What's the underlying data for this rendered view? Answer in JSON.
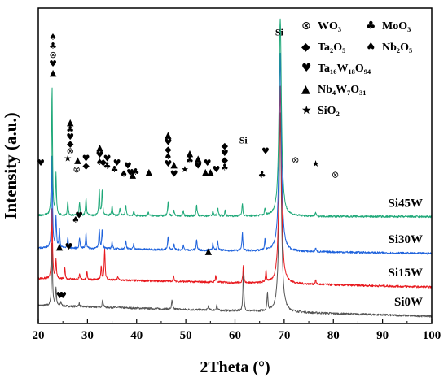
{
  "chart_data": {
    "type": "line",
    "title": "",
    "xlabel": "2Theta (°)",
    "ylabel": "Intensity (a.u.)",
    "xlim": [
      20,
      100
    ],
    "x_ticks": [
      "20",
      "30",
      "40",
      "50",
      "60",
      "70",
      "80",
      "90",
      "100"
    ],
    "y_ticks": [],
    "grid": false,
    "legend_position": "top-right",
    "legend": [
      {
        "symbol": "⊗",
        "label": "WO₃"
      },
      {
        "symbol": "♣",
        "label": "MoO₃"
      },
      {
        "symbol": "◆",
        "label": "Ta₂O₅"
      },
      {
        "symbol": "♠",
        "label": "Nb₂O₅"
      },
      {
        "symbol": "♥",
        "label": "Ta₁₆W₁₈O₉₄"
      },
      {
        "symbol": "▲",
        "label": "Nb₄W₇O₃₁"
      },
      {
        "symbol": "★",
        "label": "SiO₂",
        "color": "#e8191e"
      }
    ],
    "series": [
      {
        "name": "Si0W",
        "color": "#555555",
        "offset": 0.0,
        "baseline_slope": -0.0015,
        "peaks": [
          [
            22.8,
            0.72
          ],
          [
            23.6,
            0.2
          ],
          [
            24.6,
            0.05
          ],
          [
            28.3,
            0.04
          ],
          [
            33.1,
            0.09
          ],
          [
            47.2,
            0.1
          ],
          [
            54.6,
            0.05
          ],
          [
            56.3,
            0.06
          ],
          [
            61.7,
            0.43
          ],
          [
            66.6,
            0.2
          ],
          [
            69.2,
            2.2
          ]
        ]
      },
      {
        "name": "Si15W",
        "color": "#e8191e",
        "offset": 0.3,
        "baseline_slope": -0.0012,
        "peaks": [
          [
            22.8,
            0.8
          ],
          [
            23.6,
            0.2
          ],
          [
            25.4,
            0.12
          ],
          [
            28.4,
            0.05
          ],
          [
            29.9,
            0.08
          ],
          [
            32.8,
            0.14
          ],
          [
            33.5,
            0.35
          ],
          [
            36.2,
            0.04
          ],
          [
            47.5,
            0.06
          ],
          [
            56.1,
            0.08
          ],
          [
            61.7,
            0.2
          ],
          [
            66.3,
            0.14
          ],
          [
            69.2,
            2.2
          ],
          [
            76.4,
            0.05
          ]
        ]
      },
      {
        "name": "Si30W",
        "color": "#1e62dc",
        "offset": 0.64,
        "baseline_slope": -0.0008,
        "peaks": [
          [
            22.8,
            1.05
          ],
          [
            23.6,
            0.35
          ],
          [
            24.3,
            0.2
          ],
          [
            26.0,
            0.12
          ],
          [
            28.4,
            0.12
          ],
          [
            29.7,
            0.17
          ],
          [
            32.4,
            0.22
          ],
          [
            33.0,
            0.22
          ],
          [
            35.0,
            0.08
          ],
          [
            37.8,
            0.1
          ],
          [
            39.4,
            0.06
          ],
          [
            46.4,
            0.15
          ],
          [
            47.6,
            0.06
          ],
          [
            49.5,
            0.05
          ],
          [
            52.2,
            0.12
          ],
          [
            55.5,
            0.08
          ],
          [
            56.5,
            0.1
          ],
          [
            61.5,
            0.2
          ],
          [
            66.1,
            0.12
          ],
          [
            69.2,
            2.2
          ],
          [
            76.4,
            0.04
          ]
        ]
      },
      {
        "name": "Si45W",
        "color": "#1ea878",
        "offset": 1.0,
        "baseline_slope": -0.0002,
        "peaks": [
          [
            22.8,
            1.45
          ],
          [
            23.6,
            0.45
          ],
          [
            26.0,
            0.16
          ],
          [
            28.4,
            0.15
          ],
          [
            29.7,
            0.19
          ],
          [
            32.4,
            0.29
          ],
          [
            33.0,
            0.29
          ],
          [
            35.0,
            0.12
          ],
          [
            36.6,
            0.08
          ],
          [
            37.8,
            0.12
          ],
          [
            39.4,
            0.05
          ],
          [
            42.4,
            0.04
          ],
          [
            46.4,
            0.15
          ],
          [
            47.6,
            0.06
          ],
          [
            49.5,
            0.05
          ],
          [
            52.2,
            0.12
          ],
          [
            55.5,
            0.06
          ],
          [
            56.5,
            0.09
          ],
          [
            58.0,
            0.06
          ],
          [
            61.5,
            0.14
          ],
          [
            66.1,
            0.08
          ],
          [
            69.2,
            2.2
          ],
          [
            76.4,
            0.04
          ]
        ]
      }
    ],
    "annotations": [
      {
        "text": "Si",
        "x": 69.0,
        "y": 3.0,
        "kind": "label"
      },
      {
        "text": "Si",
        "x": 61.7,
        "y": 1.8,
        "kind": "label"
      },
      {
        "text": "♥",
        "x": 20.5,
        "y": 1.55,
        "kind": "symbol"
      },
      {
        "text": "♠",
        "x": 23.0,
        "y": 2.95,
        "kind": "symbol"
      },
      {
        "text": "♣",
        "x": 23.0,
        "y": 2.85,
        "kind": "symbol"
      },
      {
        "text": "⊗",
        "x": 23.0,
        "y": 2.75,
        "kind": "symbol"
      },
      {
        "text": "♥",
        "x": 23.0,
        "y": 2.65,
        "kind": "symbol"
      },
      {
        "text": "▲",
        "x": 23.0,
        "y": 2.55,
        "kind": "symbol"
      },
      {
        "text": "▲",
        "x": 26.5,
        "y": 2.0,
        "kind": "symbol"
      },
      {
        "text": "♣",
        "x": 26.5,
        "y": 1.92,
        "kind": "symbol"
      },
      {
        "text": "♥",
        "x": 26.5,
        "y": 1.84,
        "kind": "symbol"
      },
      {
        "text": "◆",
        "x": 26.5,
        "y": 1.76,
        "kind": "symbol"
      },
      {
        "text": "⊗",
        "x": 26.5,
        "y": 1.68,
        "kind": "symbol"
      },
      {
        "text": "★",
        "x": 26.0,
        "y": 1.6,
        "kind": "symbol",
        "color": "#e8191e"
      },
      {
        "text": "▲",
        "x": 28.0,
        "y": 1.58,
        "kind": "symbol"
      },
      {
        "text": "⊗",
        "x": 27.8,
        "y": 1.48,
        "kind": "symbol"
      },
      {
        "text": "♥",
        "x": 29.7,
        "y": 1.6,
        "kind": "symbol"
      },
      {
        "text": "◆",
        "x": 29.7,
        "y": 1.52,
        "kind": "symbol"
      },
      {
        "text": "▲",
        "x": 32.5,
        "y": 1.72,
        "kind": "symbol"
      },
      {
        "text": "♥",
        "x": 32.5,
        "y": 1.64,
        "kind": "symbol"
      },
      {
        "text": "♠",
        "x": 32.5,
        "y": 1.56,
        "kind": "symbol"
      },
      {
        "text": "♥",
        "x": 34.0,
        "y": 1.6,
        "kind": "symbol"
      },
      {
        "text": "♣",
        "x": 34.0,
        "y": 1.52,
        "kind": "symbol"
      },
      {
        "text": "◆",
        "x": 33.2,
        "y": 1.56,
        "kind": "symbol"
      },
      {
        "text": "♥",
        "x": 36.0,
        "y": 1.55,
        "kind": "symbol"
      },
      {
        "text": "♣",
        "x": 35.5,
        "y": 1.48,
        "kind": "symbol"
      },
      {
        "text": "♠",
        "x": 37.4,
        "y": 1.43,
        "kind": "symbol"
      },
      {
        "text": "♥",
        "x": 38.2,
        "y": 1.52,
        "kind": "symbol"
      },
      {
        "text": "♥",
        "x": 38.7,
        "y": 1.44,
        "kind": "symbol"
      },
      {
        "text": "▲",
        "x": 39.2,
        "y": 1.42,
        "kind": "symbol"
      },
      {
        "text": "♣",
        "x": 39.8,
        "y": 1.45,
        "kind": "symbol"
      },
      {
        "text": "▲",
        "x": 42.5,
        "y": 1.45,
        "kind": "symbol"
      },
      {
        "text": "▲",
        "x": 46.4,
        "y": 1.86,
        "kind": "symbol"
      },
      {
        "text": "♥",
        "x": 46.4,
        "y": 1.78,
        "kind": "symbol"
      },
      {
        "text": "◆",
        "x": 46.4,
        "y": 1.7,
        "kind": "symbol"
      },
      {
        "text": "♠",
        "x": 46.4,
        "y": 1.62,
        "kind": "symbol"
      },
      {
        "text": "♥",
        "x": 46.4,
        "y": 1.54,
        "kind": "symbol"
      },
      {
        "text": "▲",
        "x": 47.6,
        "y": 1.53,
        "kind": "symbol"
      },
      {
        "text": "♥",
        "x": 47.6,
        "y": 1.43,
        "kind": "symbol"
      },
      {
        "text": "★",
        "x": 49.8,
        "y": 1.48,
        "kind": "symbol",
        "color": "#e8191e"
      },
      {
        "text": "▲",
        "x": 50.8,
        "y": 1.66,
        "kind": "symbol"
      },
      {
        "text": "♣",
        "x": 50.8,
        "y": 1.58,
        "kind": "symbol"
      },
      {
        "text": "▲",
        "x": 52.5,
        "y": 1.6,
        "kind": "symbol"
      },
      {
        "text": "♥",
        "x": 52.5,
        "y": 1.52,
        "kind": "symbol"
      },
      {
        "text": "♥",
        "x": 54.4,
        "y": 1.55,
        "kind": "symbol"
      },
      {
        "text": "▲",
        "x": 54.0,
        "y": 1.45,
        "kind": "symbol"
      },
      {
        "text": "▲",
        "x": 55.0,
        "y": 1.45,
        "kind": "symbol"
      },
      {
        "text": "♥",
        "x": 56.2,
        "y": 1.48,
        "kind": "symbol"
      },
      {
        "text": "◆",
        "x": 57.9,
        "y": 1.74,
        "kind": "symbol"
      },
      {
        "text": "♥",
        "x": 57.9,
        "y": 1.66,
        "kind": "symbol"
      },
      {
        "text": "◆",
        "x": 57.9,
        "y": 1.58,
        "kind": "symbol"
      },
      {
        "text": "♣",
        "x": 57.9,
        "y": 1.5,
        "kind": "symbol"
      },
      {
        "text": "♥",
        "x": 66.2,
        "y": 1.68,
        "kind": "symbol"
      },
      {
        "text": "♣",
        "x": 65.5,
        "y": 1.42,
        "kind": "symbol"
      },
      {
        "text": "⊗",
        "x": 72.3,
        "y": 1.58,
        "kind": "symbol"
      },
      {
        "text": "★",
        "x": 76.4,
        "y": 1.54,
        "kind": "symbol",
        "color": "#e8191e"
      },
      {
        "text": "⊗",
        "x": 80.4,
        "y": 1.42,
        "kind": "symbol"
      },
      {
        "text": "♥",
        "x": 28.3,
        "y": 0.97,
        "kind": "symbol"
      },
      {
        "text": "♠",
        "x": 27.6,
        "y": 0.92,
        "kind": "symbol"
      },
      {
        "text": "▲",
        "x": 24.3,
        "y": 0.62,
        "kind": "symbol"
      },
      {
        "text": "♥",
        "x": 26.2,
        "y": 0.62,
        "kind": "symbol"
      },
      {
        "text": "▲",
        "x": 54.6,
        "y": 0.57,
        "kind": "symbol"
      },
      {
        "text": "♥",
        "x": 24.4,
        "y": 0.08,
        "kind": "symbol"
      },
      {
        "text": "♥",
        "x": 25.0,
        "y": 0.08,
        "kind": "symbol"
      }
    ]
  }
}
